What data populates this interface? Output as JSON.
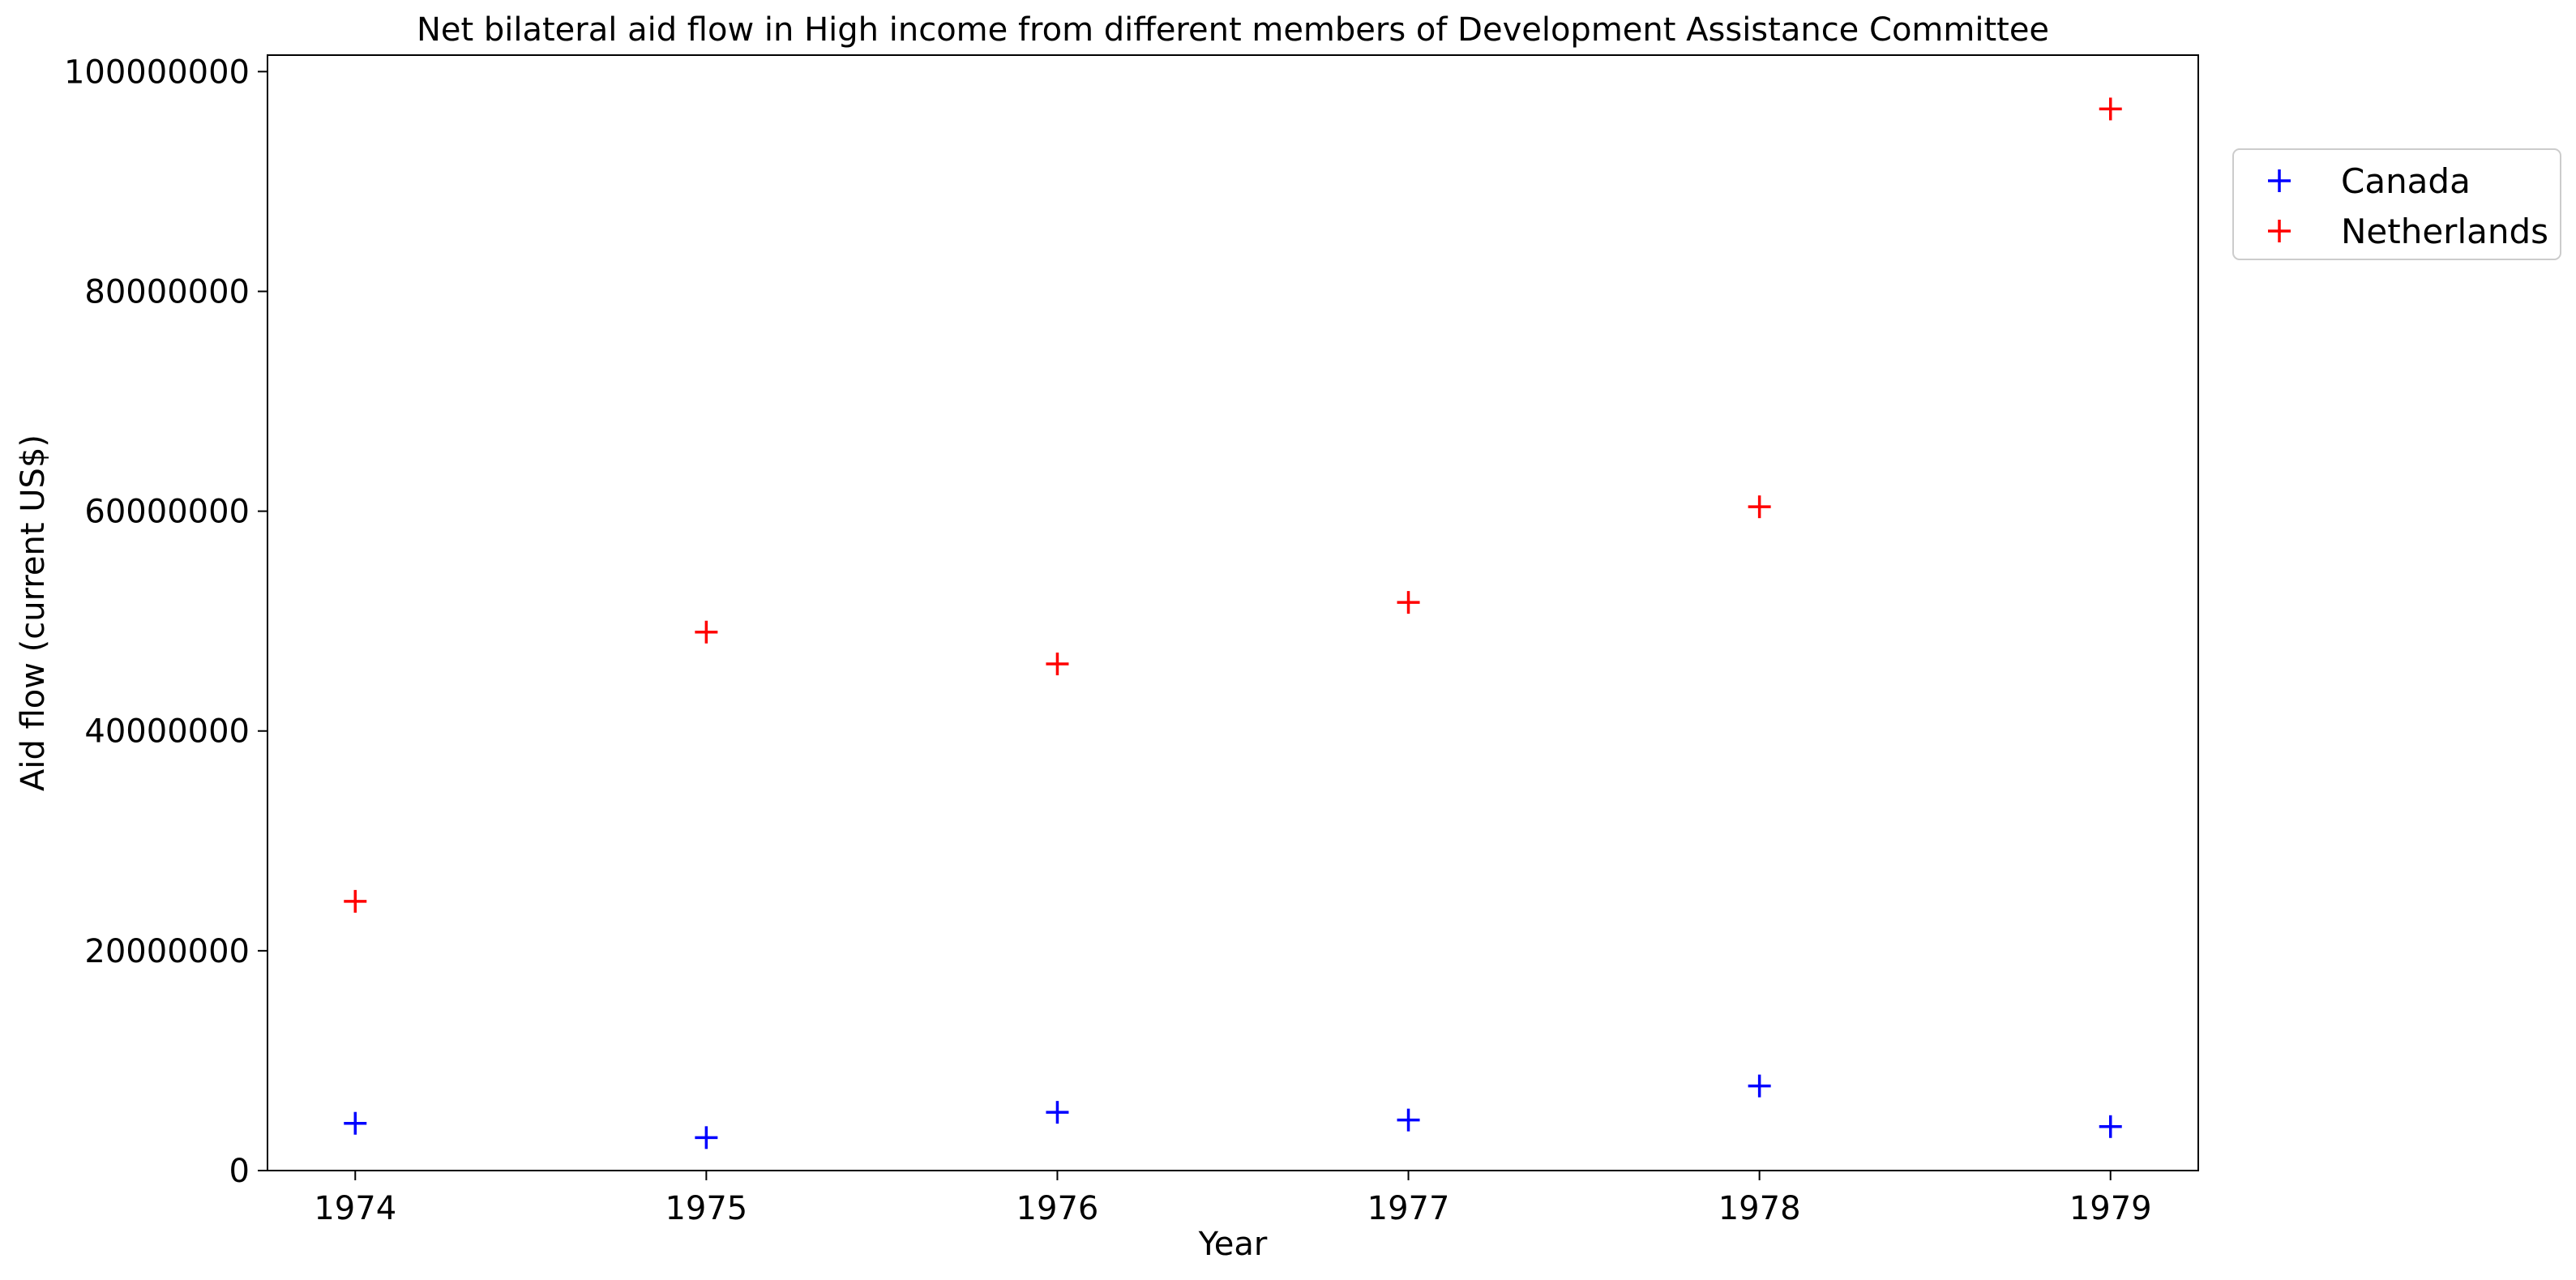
{
  "chart_data": {
    "type": "scatter",
    "title": "Net bilateral aid flow in High income from different members of Development Assistance Committee",
    "xlabel": "Year",
    "ylabel": "Aid flow (current US$)",
    "x": [
      1974,
      1975,
      1976,
      1977,
      1978,
      1979
    ],
    "xlim": [
      1973.75,
      1979.25
    ],
    "ylim": [
      0,
      101500000
    ],
    "yticks": [
      0,
      20000000,
      40000000,
      60000000,
      80000000,
      100000000
    ],
    "ytick_labels": [
      "0",
      "20000000",
      "40000000",
      "60000000",
      "80000000",
      "100000000"
    ],
    "xticks": [
      1974,
      1975,
      1976,
      1977,
      1978,
      1979
    ],
    "xtick_labels": [
      "1974",
      "1975",
      "1976",
      "1977",
      "1978",
      "1979"
    ],
    "grid": false,
    "legend_position": "outside-top-right",
    "marker": "+",
    "series": [
      {
        "name": "Canada",
        "color": "#0000ff",
        "values": [
          4300000,
          3000000,
          5300000,
          4600000,
          7700000,
          4000000
        ]
      },
      {
        "name": "Netherlands",
        "color": "#ff0000",
        "values": [
          24500000,
          49000000,
          46100000,
          51700000,
          60400000,
          96600000
        ]
      }
    ]
  }
}
